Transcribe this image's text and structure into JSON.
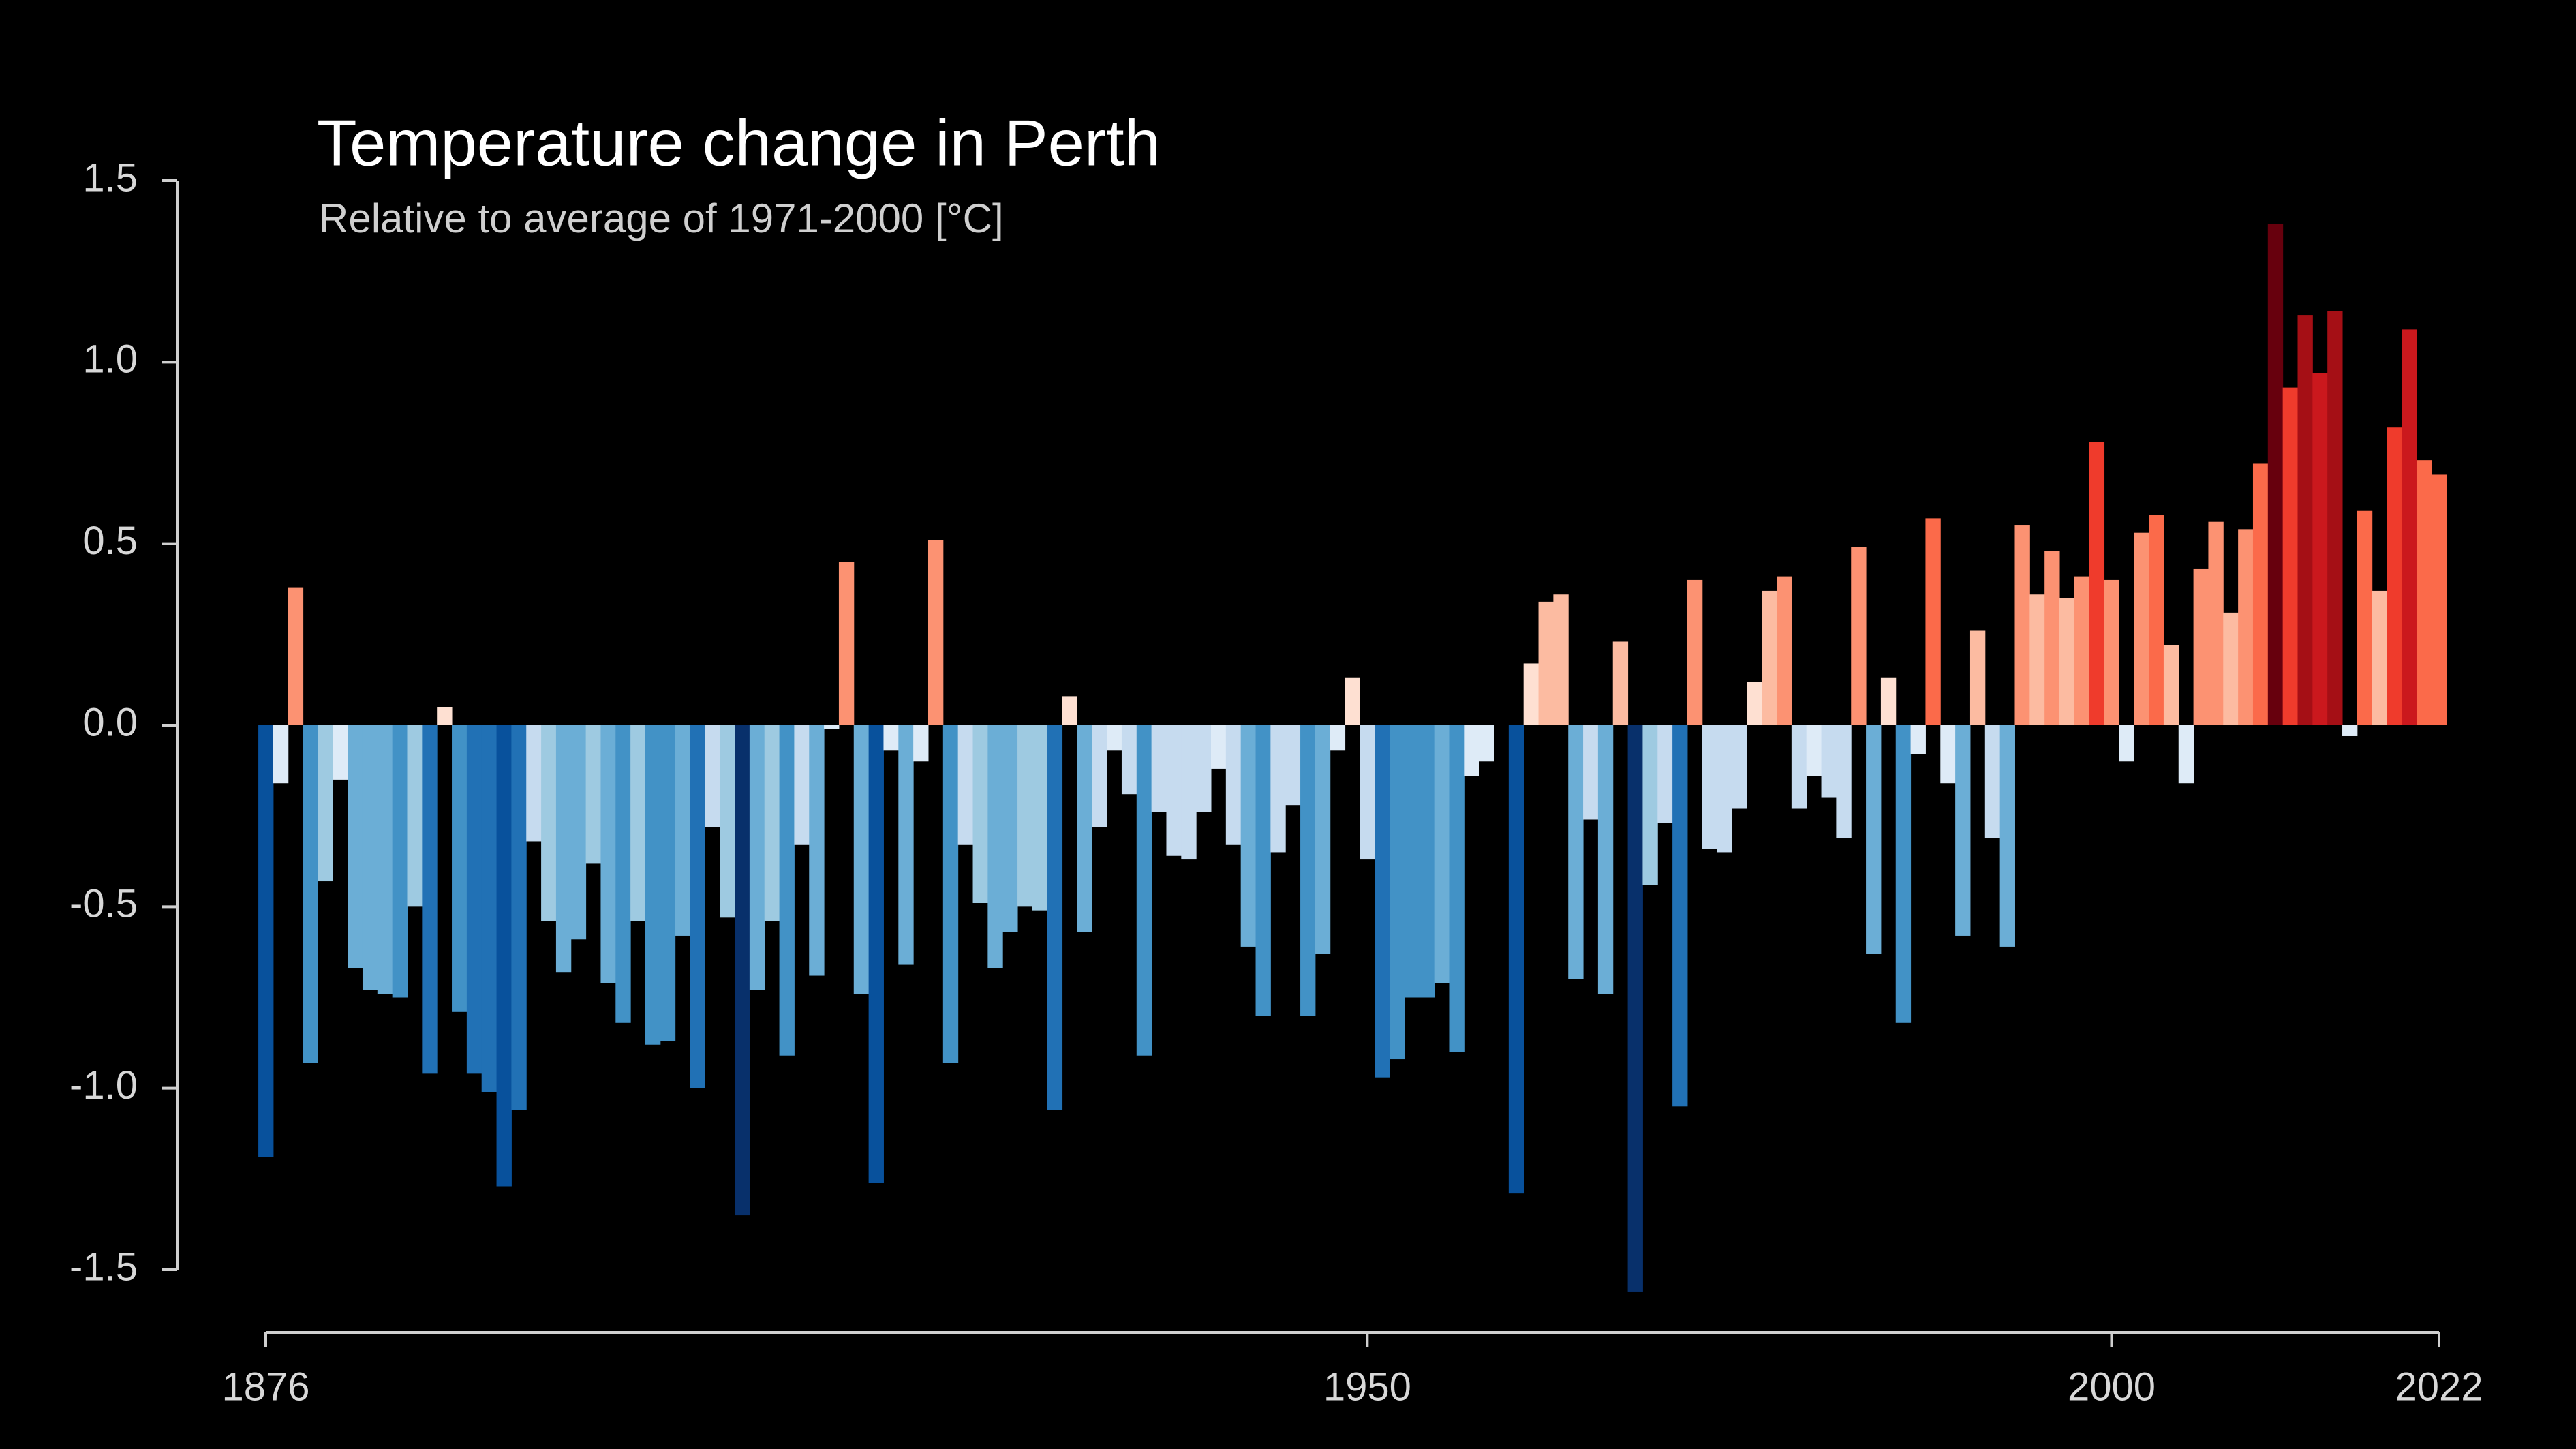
{
  "chart_data": {
    "type": "bar",
    "title": "Temperature change in Perth",
    "subtitle": "Relative to average of 1971-2000  [°C]",
    "x": [
      1876,
      1877,
      1878,
      1879,
      1880,
      1881,
      1882,
      1883,
      1884,
      1885,
      1886,
      1887,
      1888,
      1889,
      1890,
      1891,
      1892,
      1893,
      1894,
      1895,
      1896,
      1897,
      1898,
      1899,
      1900,
      1901,
      1902,
      1903,
      1904,
      1905,
      1906,
      1907,
      1908,
      1909,
      1910,
      1911,
      1912,
      1913,
      1914,
      1915,
      1916,
      1917,
      1918,
      1919,
      1920,
      1921,
      1922,
      1923,
      1924,
      1925,
      1926,
      1927,
      1928,
      1929,
      1930,
      1931,
      1932,
      1933,
      1934,
      1935,
      1936,
      1937,
      1938,
      1939,
      1940,
      1941,
      1942,
      1943,
      1944,
      1945,
      1946,
      1947,
      1948,
      1949,
      1950,
      1951,
      1952,
      1953,
      1954,
      1955,
      1956,
      1957,
      1958,
      1959,
      1960,
      1961,
      1962,
      1963,
      1964,
      1965,
      1966,
      1967,
      1968,
      1969,
      1970,
      1971,
      1972,
      1973,
      1974,
      1975,
      1976,
      1977,
      1978,
      1979,
      1980,
      1981,
      1982,
      1983,
      1984,
      1985,
      1986,
      1987,
      1988,
      1989,
      1990,
      1991,
      1992,
      1993,
      1994,
      1995,
      1996,
      1997,
      1998,
      1999,
      2000,
      2001,
      2002,
      2003,
      2004,
      2005,
      2006,
      2007,
      2008,
      2009,
      2010,
      2011,
      2012,
      2013,
      2014,
      2015,
      2016,
      2017,
      2018,
      2019,
      2020,
      2021,
      2022
    ],
    "values": [
      -1.19,
      -0.16,
      0.38,
      -0.93,
      -0.43,
      -0.15,
      -0.67,
      -0.73,
      -0.74,
      -0.75,
      -0.5,
      -0.96,
      0.05,
      -0.79,
      -0.96,
      -1.01,
      -1.27,
      -1.06,
      -0.32,
      -0.54,
      -0.68,
      -0.59,
      -0.38,
      -0.71,
      -0.82,
      -0.54,
      -0.88,
      -0.87,
      -0.58,
      -1.0,
      -0.28,
      -0.53,
      -1.35,
      -0.73,
      -0.54,
      -0.91,
      -0.33,
      -0.69,
      -0.01,
      0.45,
      -0.74,
      -1.26,
      -0.07,
      -0.66,
      -0.1,
      0.51,
      -0.93,
      -0.33,
      -0.49,
      -0.67,
      -0.57,
      -0.5,
      -0.51,
      -1.06,
      0.08,
      -0.57,
      -0.28,
      -0.07,
      -0.19,
      -0.91,
      -0.24,
      -0.36,
      -0.37,
      -0.24,
      -0.12,
      -0.33,
      -0.61,
      -0.8,
      -0.35,
      -0.22,
      -0.8,
      -0.63,
      -0.07,
      0.13,
      -0.37,
      -0.97,
      -0.92,
      -0.75,
      -0.75,
      -0.71,
      -0.9,
      -0.14,
      -0.1,
      0.0,
      -1.29,
      0.17,
      0.34,
      0.36,
      -0.7,
      -0.26,
      -0.74,
      0.23,
      -1.56,
      -0.44,
      -0.27,
      -1.05,
      0.4,
      -0.34,
      -0.35,
      -0.23,
      0.12,
      0.37,
      0.41,
      -0.23,
      -0.14,
      -0.2,
      -0.31,
      0.49,
      -0.63,
      0.13,
      -0.82,
      -0.08,
      0.57,
      -0.16,
      -0.58,
      0.26,
      -0.31,
      -0.61,
      0.55,
      0.36,
      0.48,
      0.35,
      0.41,
      0.78,
      0.4,
      -0.1,
      0.53,
      0.58,
      0.22,
      -0.16,
      0.43,
      0.56,
      0.31,
      0.54,
      0.72,
      1.38,
      0.93,
      1.13,
      0.97,
      1.14,
      -0.03,
      0.59,
      0.37,
      0.82,
      1.09,
      0.73,
      0.69
    ],
    "xlim": [
      1876,
      2022
    ],
    "xticks": [
      1876,
      1950,
      2000,
      2022
    ],
    "ylim": [
      -1.5,
      1.5
    ],
    "yticks": [
      {
        "value": 1.5,
        "label": "1.5"
      },
      {
        "value": 1.0,
        "label": "1.0"
      },
      {
        "value": 0.5,
        "label": "0.5"
      },
      {
        "value": 0.0,
        "label": "0.0"
      },
      {
        "value": -0.5,
        "label": "-0.5"
      },
      {
        "value": -1.0,
        "label": "-1.0"
      },
      {
        "value": -1.5,
        "label": "-1.5"
      }
    ],
    "grid": false
  }
}
